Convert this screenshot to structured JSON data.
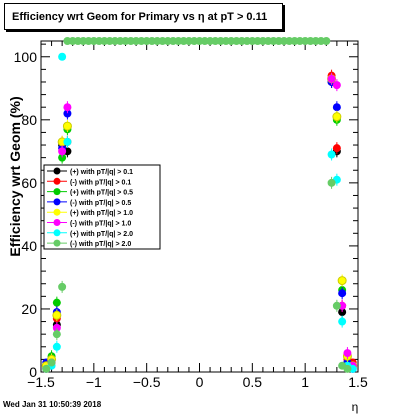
{
  "title": "Efficiency wrt Geom for Primary vs   η at pT > 0.11",
  "timestamp": "Wed Jan 31 10:50:39 2018",
  "chart_data": {
    "type": "scatter",
    "title": "Efficiency wrt Geom for Primary vs   η at pT > 0.11",
    "xlabel": "η",
    "ylabel": "Efficiency wrt Geom (%)",
    "xlim": [
      -1.5,
      1.5
    ],
    "ylim": [
      0,
      105
    ],
    "x_ticks": [
      -1.5,
      -1,
      -0.5,
      0,
      0.5,
      1,
      1.5
    ],
    "x_tick_labels": [
      "−1.5",
      "−1",
      "−0.5",
      "0",
      "0.5",
      "1",
      "1.5"
    ],
    "y_ticks": [
      0,
      20,
      40,
      60,
      80,
      100
    ],
    "y_tick_labels": [
      "0",
      "20",
      "40",
      "60",
      "80",
      "100"
    ],
    "grid": false,
    "legend_position": "left",
    "series": [
      {
        "name": "(+) with pT/|q| > 0.1",
        "color": "#000000",
        "points": [
          [
            -1.45,
            2
          ],
          [
            -1.4,
            4
          ],
          [
            -1.35,
            15
          ],
          [
            -1.3,
            72
          ],
          [
            -1.25,
            70
          ],
          [
            1.25,
            92
          ],
          [
            1.3,
            70
          ],
          [
            1.35,
            19
          ],
          [
            1.4,
            3
          ],
          [
            1.45,
            2
          ]
        ]
      },
      {
        "name": "(-) with pT/|q| > 0.1",
        "color": "#ff0000",
        "points": [
          [
            -1.45,
            1
          ],
          [
            -1.4,
            3
          ],
          [
            -1.35,
            17
          ],
          [
            -1.3,
            73
          ],
          [
            -1.25,
            73
          ],
          [
            1.25,
            94
          ],
          [
            1.3,
            71
          ],
          [
            1.35,
            21
          ],
          [
            1.4,
            4
          ],
          [
            1.45,
            3
          ]
        ]
      },
      {
        "name": "(+) with pT/|q| > 0.5",
        "color": "#00cc00",
        "points": [
          [
            -1.45,
            2
          ],
          [
            -1.4,
            5
          ],
          [
            -1.35,
            22
          ],
          [
            -1.3,
            68
          ],
          [
            -1.25,
            77
          ],
          [
            1.25,
            93
          ],
          [
            1.3,
            80
          ],
          [
            1.35,
            26
          ],
          [
            1.4,
            5
          ],
          [
            1.45,
            2
          ]
        ]
      },
      {
        "name": "(-) with pT/|q| > 0.5",
        "color": "#0000ff",
        "points": [
          [
            -1.45,
            3
          ],
          [
            -1.4,
            4
          ],
          [
            -1.35,
            19
          ],
          [
            -1.3,
            71
          ],
          [
            -1.25,
            82
          ],
          [
            1.25,
            92
          ],
          [
            1.3,
            84
          ],
          [
            1.35,
            25
          ],
          [
            1.4,
            3
          ],
          [
            1.45,
            1
          ]
        ]
      },
      {
        "name": "(+) with pT/|q| > 1.0",
        "color": "#ffff00",
        "points": [
          [
            -1.45,
            2
          ],
          [
            -1.4,
            4
          ],
          [
            -1.35,
            18
          ],
          [
            -1.3,
            73
          ],
          [
            -1.25,
            78
          ],
          [
            1.25,
            93
          ],
          [
            1.3,
            81
          ],
          [
            1.35,
            29
          ],
          [
            1.4,
            5
          ],
          [
            1.45,
            2
          ]
        ]
      },
      {
        "name": "(-) with pT/|q| > 1.0",
        "color": "#ff00ff",
        "points": [
          [
            -1.45,
            1
          ],
          [
            -1.4,
            3
          ],
          [
            -1.35,
            14
          ],
          [
            -1.3,
            70
          ],
          [
            -1.25,
            84
          ],
          [
            1.25,
            93
          ],
          [
            1.3,
            91
          ],
          [
            1.35,
            21
          ],
          [
            1.4,
            6
          ],
          [
            1.45,
            2
          ]
        ]
      },
      {
        "name": "(+) with pT/|q| > 2.0",
        "color": "#00ffff",
        "points": [
          [
            -1.45,
            1
          ],
          [
            -1.4,
            2
          ],
          [
            -1.35,
            8
          ],
          [
            -1.3,
            100
          ],
          [
            -1.25,
            73
          ],
          [
            1.25,
            69
          ],
          [
            1.3,
            61
          ],
          [
            1.35,
            16
          ],
          [
            1.4,
            2
          ],
          [
            1.45,
            1
          ]
        ]
      },
      {
        "name": "(-) with pT/|q| > 2.0",
        "color": "#66cc66",
        "points": [
          [
            -1.45,
            1
          ],
          [
            -1.4,
            3
          ],
          [
            -1.35,
            12
          ],
          [
            -1.3,
            27
          ],
          [
            -1.25,
            105
          ],
          [
            -1.2,
            105
          ],
          [
            -1.15,
            105
          ],
          [
            -1.1,
            105
          ],
          [
            -1.05,
            105
          ],
          [
            -1,
            105
          ],
          [
            -0.95,
            105
          ],
          [
            -0.9,
            105
          ],
          [
            -0.85,
            105
          ],
          [
            -0.8,
            105
          ],
          [
            -0.75,
            105
          ],
          [
            -0.7,
            105
          ],
          [
            -0.65,
            105
          ],
          [
            -0.6,
            105
          ],
          [
            -0.55,
            105
          ],
          [
            -0.5,
            105
          ],
          [
            -0.45,
            105
          ],
          [
            -0.4,
            105
          ],
          [
            -0.35,
            105
          ],
          [
            -0.3,
            105
          ],
          [
            -0.25,
            105
          ],
          [
            -0.2,
            105
          ],
          [
            -0.15,
            105
          ],
          [
            -0.1,
            105
          ],
          [
            -0.05,
            105
          ],
          [
            0,
            105
          ],
          [
            0.05,
            105
          ],
          [
            0.1,
            105
          ],
          [
            0.15,
            105
          ],
          [
            0.2,
            105
          ],
          [
            0.25,
            105
          ],
          [
            0.3,
            105
          ],
          [
            0.35,
            105
          ],
          [
            0.4,
            105
          ],
          [
            0.45,
            105
          ],
          [
            0.5,
            105
          ],
          [
            0.55,
            105
          ],
          [
            0.6,
            105
          ],
          [
            0.65,
            105
          ],
          [
            0.7,
            105
          ],
          [
            0.75,
            105
          ],
          [
            0.8,
            105
          ],
          [
            0.85,
            105
          ],
          [
            0.9,
            105
          ],
          [
            0.95,
            105
          ],
          [
            1,
            105
          ],
          [
            1.05,
            105
          ],
          [
            1.1,
            105
          ],
          [
            1.15,
            105
          ],
          [
            1.2,
            105
          ],
          [
            1.25,
            60
          ],
          [
            1.3,
            21
          ],
          [
            1.35,
            2
          ],
          [
            1.4,
            1
          ]
        ]
      }
    ]
  }
}
